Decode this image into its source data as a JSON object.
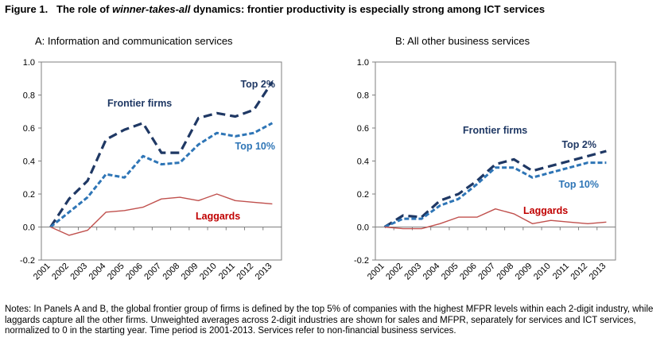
{
  "figure": {
    "title_prefix": "Figure 1.",
    "title_part1": "The role of ",
    "title_italic": "winner-takes-all",
    "title_part2": " dynamics: frontier productivity is especially strong among ICT services",
    "notes": "Notes: In Panels A and B, the global frontier group of firms is defined by the top 5% of companies with the highest MFPR levels within each 2-digit industry, while laggards capture all the other firms. Unweighted averages across 2-digit industries are shown for sales and MFPR, separately for services and ICT services, normalized to 0 in the starting year. Time period is 2001-2013. Services refer to non-financial business services."
  },
  "colors": {
    "top2": "#1f3864",
    "top10": "#2e75b6",
    "laggards": "#c0504d",
    "frontier_label": "#1f3864",
    "top10_label": "#2e75b6",
    "laggards_label": "#c00000"
  },
  "chart_data": [
    {
      "type": "line",
      "title": "A: Information and communication  services",
      "x": [
        "2001",
        "2002",
        "2003",
        "2004",
        "2005",
        "2006",
        "2007",
        "2008",
        "2009",
        "2010",
        "2011",
        "2012",
        "2013"
      ],
      "ylim": [
        -0.2,
        1.0
      ],
      "yticks": [
        "-0.2",
        "0.0",
        "0.2",
        "0.4",
        "0.6",
        "0.8",
        "1.0"
      ],
      "grid": false,
      "series": [
        {
          "name": "Top 2%",
          "style": "dash",
          "values": [
            0.0,
            0.17,
            0.28,
            0.53,
            0.59,
            0.63,
            0.45,
            0.45,
            0.66,
            0.69,
            0.67,
            0.71,
            0.88
          ]
        },
        {
          "name": "Top 10%",
          "style": "shortdash",
          "values": [
            0.0,
            0.09,
            0.18,
            0.32,
            0.3,
            0.43,
            0.38,
            0.39,
            0.5,
            0.57,
            0.55,
            0.57,
            0.63
          ]
        },
        {
          "name": "Laggards",
          "style": "solid",
          "values": [
            0.0,
            -0.05,
            -0.02,
            0.09,
            0.1,
            0.12,
            0.17,
            0.18,
            0.16,
            0.2,
            0.16,
            0.15,
            0.14
          ]
        }
      ],
      "annotations": [
        {
          "text": "Frontier firms",
          "role": "frontier"
        },
        {
          "text": "Top 2%",
          "role": "top2"
        },
        {
          "text": "Top 10%",
          "role": "top10"
        },
        {
          "text": "Laggards",
          "role": "laggards"
        }
      ]
    },
    {
      "type": "line",
      "title": "B: All other business services",
      "x": [
        "2001",
        "2002",
        "2003",
        "2004",
        "2005",
        "2006",
        "2007",
        "2008",
        "2009",
        "2010",
        "2011",
        "2012",
        "2013"
      ],
      "ylim": [
        -0.2,
        1.0
      ],
      "yticks": [
        "-0.2",
        "0.0",
        "0.2",
        "0.4",
        "0.6",
        "0.8",
        "1.0"
      ],
      "grid": false,
      "series": [
        {
          "name": "Top 2%",
          "style": "dash",
          "values": [
            0.0,
            0.07,
            0.06,
            0.16,
            0.2,
            0.28,
            0.38,
            0.41,
            0.34,
            0.37,
            0.4,
            0.43,
            0.46
          ]
        },
        {
          "name": "Top 10%",
          "style": "shortdash",
          "values": [
            0.0,
            0.05,
            0.05,
            0.13,
            0.17,
            0.26,
            0.36,
            0.36,
            0.3,
            0.33,
            0.36,
            0.39,
            0.39
          ]
        },
        {
          "name": "Laggards",
          "style": "solid",
          "values": [
            0.0,
            -0.01,
            -0.01,
            0.02,
            0.06,
            0.06,
            0.11,
            0.08,
            0.02,
            0.04,
            0.03,
            0.02,
            0.03
          ]
        }
      ],
      "annotations": [
        {
          "text": "Frontier firms",
          "role": "frontier"
        },
        {
          "text": "Top 2%",
          "role": "top2"
        },
        {
          "text": "Top 10%",
          "role": "top10"
        },
        {
          "text": "Laggards",
          "role": "laggards"
        }
      ]
    }
  ]
}
